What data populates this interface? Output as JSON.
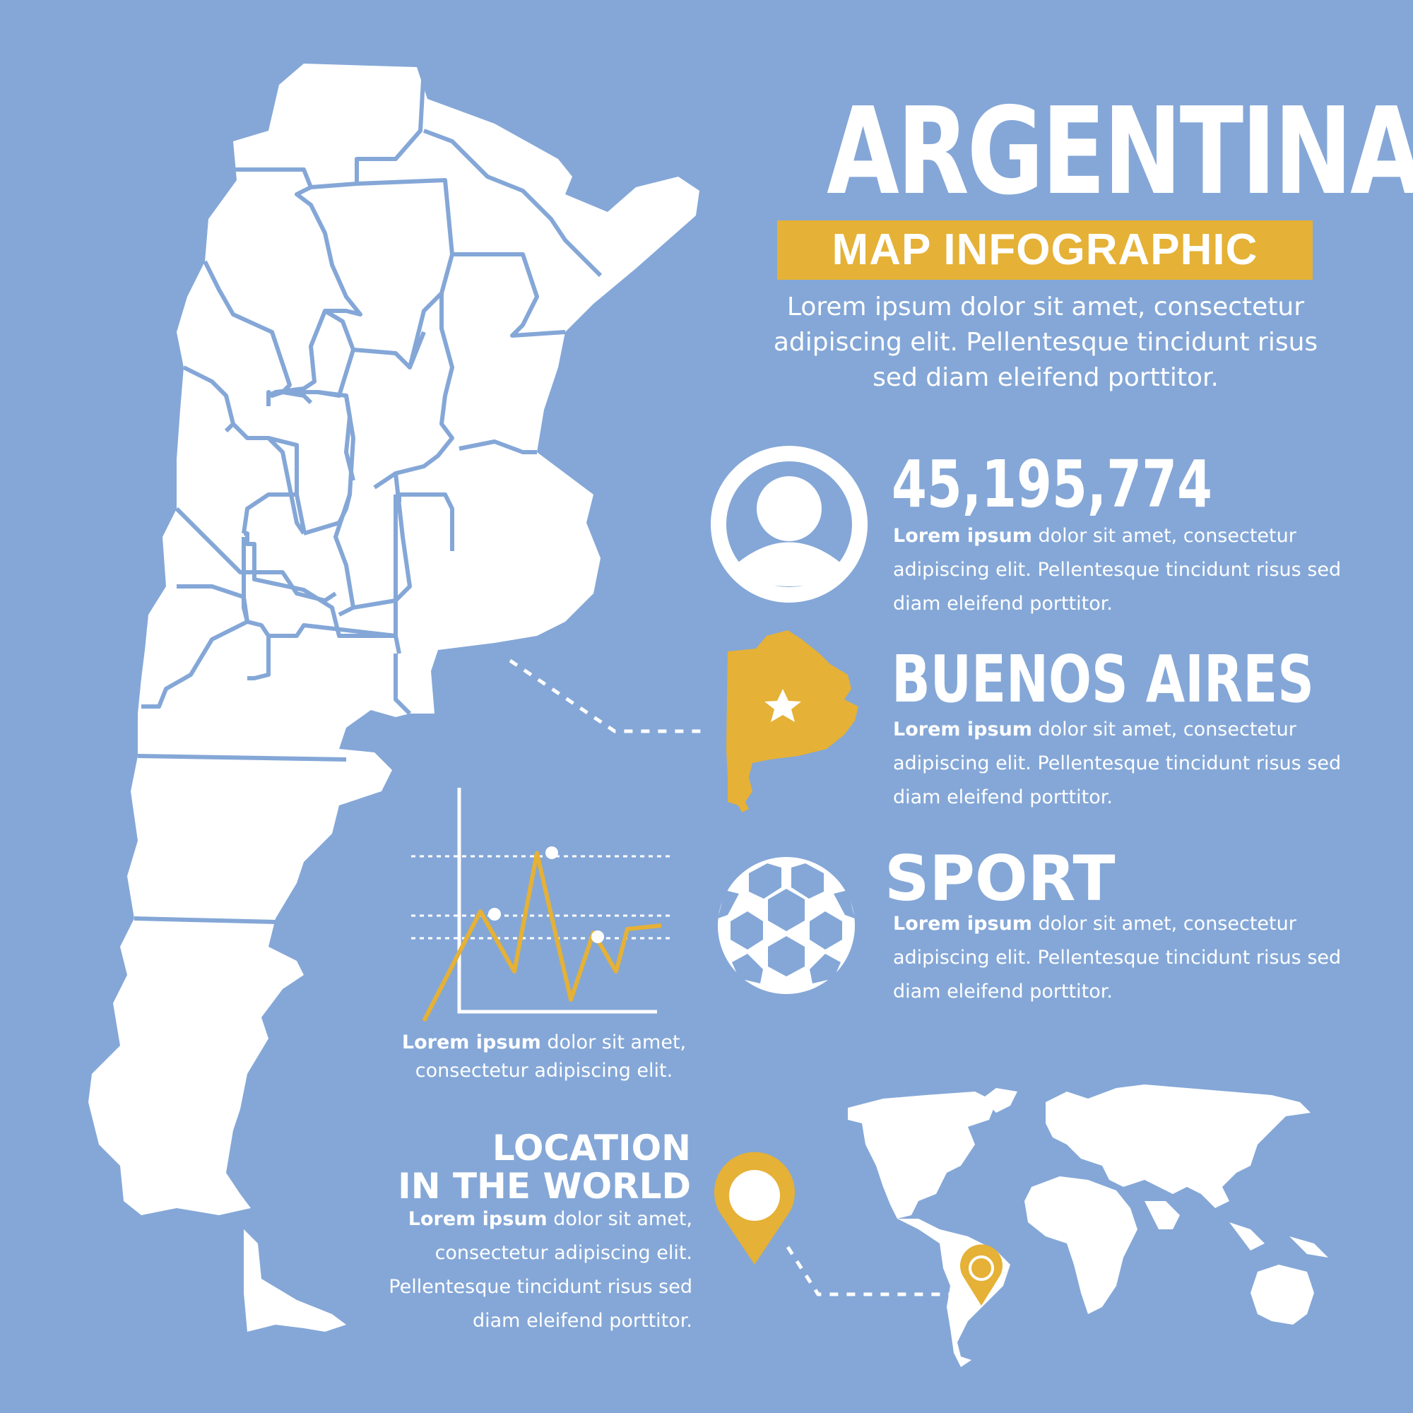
{
  "header": {
    "title": "ARGENTINA",
    "subtitle": "MAP INFOGRAPHIC",
    "intro": "Lorem ipsum dolor sit amet, consectetur adipiscing elit. Pellentesque tincidunt risus sed diam eleifend porttitor."
  },
  "stats": [
    {
      "heading": "45,195,774",
      "bold": "Lorem ipsum",
      "text": " dolor sit amet, consectetur adipiscing elit. Pellentesque tincidunt risus sed diam eleifend porttitor.",
      "icon": "person-icon"
    },
    {
      "heading": "BUENOS AIRES",
      "bold": "Lorem ipsum",
      "text": " dolor sit amet, consectetur adipiscing elit. Pellentesque tincidunt risus sed diam eleifend porttitor.",
      "icon": "province-star-icon"
    },
    {
      "heading": "SPORT",
      "bold": "Lorem ipsum",
      "text": " dolor sit amet, consectetur adipiscing elit. Pellentesque tincidunt risus sed diam eleifend porttitor.",
      "icon": "soccer-ball-icon"
    }
  ],
  "chart": {
    "bold": "Lorem ipsum",
    "text": " dolor sit amet, consectetur adipiscing elit.",
    "points": [
      [
        0,
        0
      ],
      [
        1,
        0.62
      ],
      [
        1.6,
        0.28
      ],
      [
        2,
        0.95
      ],
      [
        2.6,
        0.12
      ],
      [
        3,
        0.5
      ],
      [
        3.4,
        0.28
      ],
      [
        3.6,
        0.52
      ],
      [
        4.2,
        0.54
      ]
    ]
  },
  "location": {
    "title_line1": "LOCATION",
    "title_line2": "IN THE WORLD",
    "bold": "Lorem ipsum",
    "text": " dolor sit amet, consectetur adipiscing elit. Pellentesque tincidunt risus sed diam eleifend porttitor."
  },
  "colors": {
    "background": "#84a7d7",
    "accent": "#e5b136",
    "white": "#ffffff"
  }
}
